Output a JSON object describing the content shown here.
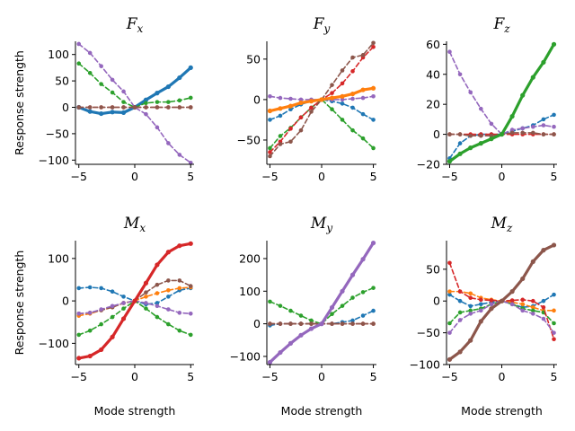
{
  "chart_data": {
    "type": "line",
    "layout": "2x3 grid of subplots",
    "x": [
      -5,
      -4,
      -3,
      -2,
      -1,
      0,
      1,
      2,
      3,
      4,
      5
    ],
    "xlabel": "Mode strength",
    "ylabel": "Response strength",
    "grid": false,
    "legend": "none",
    "colors": {
      "blue": "#1f77b4",
      "orange": "#ff7f0e",
      "green": "#2ca02c",
      "red": "#d62728",
      "purple": "#9467bd",
      "brown": "#8c564b"
    },
    "panels": [
      {
        "title_main": "F",
        "title_sub": "x",
        "xticks": [
          -5,
          0,
          5
        ],
        "yticks": [
          -100,
          -50,
          0,
          50,
          100
        ],
        "ylim": [
          -108,
          125
        ],
        "series": [
          {
            "color": "blue",
            "style": "solid",
            "values": [
              0,
              -8,
              -12,
              -9,
              -10,
              0,
              14,
              27,
              39,
              56,
              75
            ]
          },
          {
            "color": "green",
            "style": "dashed",
            "values": [
              83,
              65,
              44,
              28,
              10,
              0,
              8,
              10,
              10,
              13,
              18
            ]
          },
          {
            "color": "purple",
            "style": "dashed",
            "values": [
              120,
              103,
              78,
              52,
              30,
              0,
              -13,
              -38,
              -68,
              -90,
              -105
            ]
          },
          {
            "color": "red",
            "style": "dashed",
            "values": [
              0,
              0,
              0,
              0,
              0,
              0,
              0,
              0,
              0,
              0,
              0
            ]
          },
          {
            "color": "brown",
            "style": "dashed",
            "values": [
              0,
              0,
              0,
              0,
              0,
              0,
              0,
              0,
              0,
              0,
              0
            ]
          }
        ]
      },
      {
        "title_main": "F",
        "title_sub": "y",
        "xticks": [
          -5,
          0,
          5
        ],
        "yticks": [
          -50,
          0,
          50
        ],
        "ylim": [
          -80,
          72
        ],
        "series": [
          {
            "color": "blue",
            "style": "dashed",
            "values": [
              -25,
              -20,
              -12,
              -6,
              -2,
              0,
              -2,
              -5,
              -10,
              -18,
              -25
            ]
          },
          {
            "color": "purple",
            "style": "dashed",
            "values": [
              4,
              2,
              1,
              0,
              0,
              0,
              0,
              0,
              1,
              2,
              4
            ]
          },
          {
            "color": "green",
            "style": "dashed",
            "values": [
              -60,
              -45,
              -35,
              -22,
              -10,
              0,
              -12,
              -25,
              -38,
              -48,
              -60
            ]
          },
          {
            "color": "red",
            "style": "dashed",
            "values": [
              -65,
              -52,
              -36,
              -22,
              -10,
              0,
              8,
              20,
              35,
              52,
              65
            ]
          },
          {
            "color": "brown",
            "style": "dashed",
            "values": [
              -70,
              -55,
              -52,
              -38,
              -15,
              0,
              18,
              36,
              52,
              55,
              70
            ]
          },
          {
            "color": "orange",
            "style": "solid",
            "values": [
              -14,
              -11,
              -8,
              -4,
              -2,
              0,
              2,
              4,
              7,
              12,
              14
            ]
          }
        ]
      },
      {
        "title_main": "F",
        "title_sub": "z",
        "xticks": [
          -5,
          0,
          5
        ],
        "yticks": [
          -20,
          0,
          20,
          40,
          60
        ],
        "ylim": [
          -20,
          62
        ],
        "series": [
          {
            "color": "blue",
            "style": "dashed",
            "values": [
              -16,
              -6,
              -1,
              0,
              0,
              0,
              2,
              4,
              6,
              10,
              13
            ]
          },
          {
            "color": "purple",
            "style": "dashed",
            "values": [
              55,
              40,
              28,
              17,
              7,
              0,
              3,
              4,
              5,
              6,
              5
            ]
          },
          {
            "color": "red",
            "style": "dashed",
            "values": [
              0,
              0,
              0,
              0,
              0,
              0,
              0,
              0,
              0,
              0,
              0
            ]
          },
          {
            "color": "brown",
            "style": "dashed",
            "values": [
              0,
              0,
              -1,
              -1,
              -1,
              0,
              1,
              1,
              1,
              0,
              0
            ]
          },
          {
            "color": "green",
            "style": "solid",
            "values": [
              -18,
              -13,
              -9,
              -6,
              -3,
              0,
              12,
              26,
              38,
              48,
              60
            ]
          }
        ]
      },
      {
        "title_main": "M",
        "title_sub": "x",
        "xticks": [
          -5,
          0,
          5
        ],
        "yticks": [
          -100,
          0,
          100
        ],
        "ylim": [
          -150,
          142
        ],
        "series": [
          {
            "color": "blue",
            "style": "dashed",
            "values": [
              30,
              32,
              30,
              22,
              10,
              0,
              -8,
              -5,
              10,
              25,
              30
            ]
          },
          {
            "color": "orange",
            "style": "dashed",
            "values": [
              -35,
              -30,
              -22,
              -15,
              -5,
              0,
              10,
              18,
              25,
              30,
              32
            ]
          },
          {
            "color": "brown",
            "style": "dashed",
            "values": [
              -30,
              -28,
              -22,
              -15,
              -5,
              0,
              20,
              38,
              48,
              48,
              35
            ]
          },
          {
            "color": "purple",
            "style": "dashed",
            "values": [
              -30,
              -28,
              -20,
              -12,
              -5,
              0,
              -5,
              -12,
              -20,
              -28,
              -30
            ]
          },
          {
            "color": "green",
            "style": "dashed",
            "values": [
              -80,
              -70,
              -55,
              -38,
              -18,
              0,
              -18,
              -38,
              -55,
              -70,
              -80
            ]
          },
          {
            "color": "red",
            "style": "solid",
            "values": [
              -135,
              -130,
              -115,
              -85,
              -42,
              0,
              42,
              85,
              115,
              130,
              135
            ]
          }
        ]
      },
      {
        "title_main": "M",
        "title_sub": "y",
        "xticks": [
          -5,
          0,
          5
        ],
        "yticks": [
          -100,
          0,
          100,
          200
        ],
        "ylim": [
          -125,
          255
        ],
        "series": [
          {
            "color": "green",
            "style": "dashed",
            "values": [
              68,
              55,
              40,
              25,
              10,
              0,
              30,
              55,
              80,
              97,
              110
            ]
          },
          {
            "color": "blue",
            "style": "dashed",
            "values": [
              -5,
              0,
              0,
              0,
              0,
              0,
              0,
              5,
              10,
              25,
              40
            ]
          },
          {
            "color": "red",
            "style": "dashed",
            "values": [
              0,
              0,
              0,
              0,
              0,
              0,
              0,
              0,
              0,
              0,
              0
            ]
          },
          {
            "color": "brown",
            "style": "dashed",
            "values": [
              0,
              0,
              0,
              0,
              0,
              0,
              0,
              0,
              0,
              0,
              0
            ]
          },
          {
            "color": "purple",
            "style": "solid",
            "values": [
              -118,
              -88,
              -60,
              -35,
              -15,
              0,
              50,
              100,
              150,
              198,
              248
            ]
          }
        ]
      },
      {
        "title_main": "M",
        "title_sub": "z",
        "xticks": [
          -5,
          0,
          5
        ],
        "yticks": [
          -100,
          -50,
          0,
          50
        ],
        "ylim": [
          -100,
          95
        ],
        "series": [
          {
            "color": "blue",
            "style": "dashed",
            "values": [
              10,
              0,
              -8,
              -5,
              -2,
              0,
              -5,
              -10,
              -8,
              0,
              10
            ]
          },
          {
            "color": "orange",
            "style": "dashed",
            "values": [
              15,
              15,
              12,
              5,
              2,
              0,
              -2,
              -5,
              -10,
              -15,
              -15
            ]
          },
          {
            "color": "green",
            "style": "dashed",
            "values": [
              -35,
              -18,
              -15,
              -12,
              -5,
              0,
              -5,
              -12,
              -15,
              -18,
              -35
            ]
          },
          {
            "color": "red",
            "style": "dashed",
            "values": [
              60,
              15,
              5,
              2,
              1,
              0,
              1,
              2,
              0,
              -10,
              -60
            ]
          },
          {
            "color": "purple",
            "style": "dashed",
            "values": [
              -50,
              -30,
              -20,
              -15,
              -5,
              0,
              -5,
              -15,
              -20,
              -28,
              -50
            ]
          },
          {
            "color": "brown",
            "style": "solid",
            "values": [
              -92,
              -80,
              -62,
              -32,
              -12,
              0,
              15,
              35,
              62,
              80,
              88
            ]
          }
        ]
      }
    ]
  }
}
